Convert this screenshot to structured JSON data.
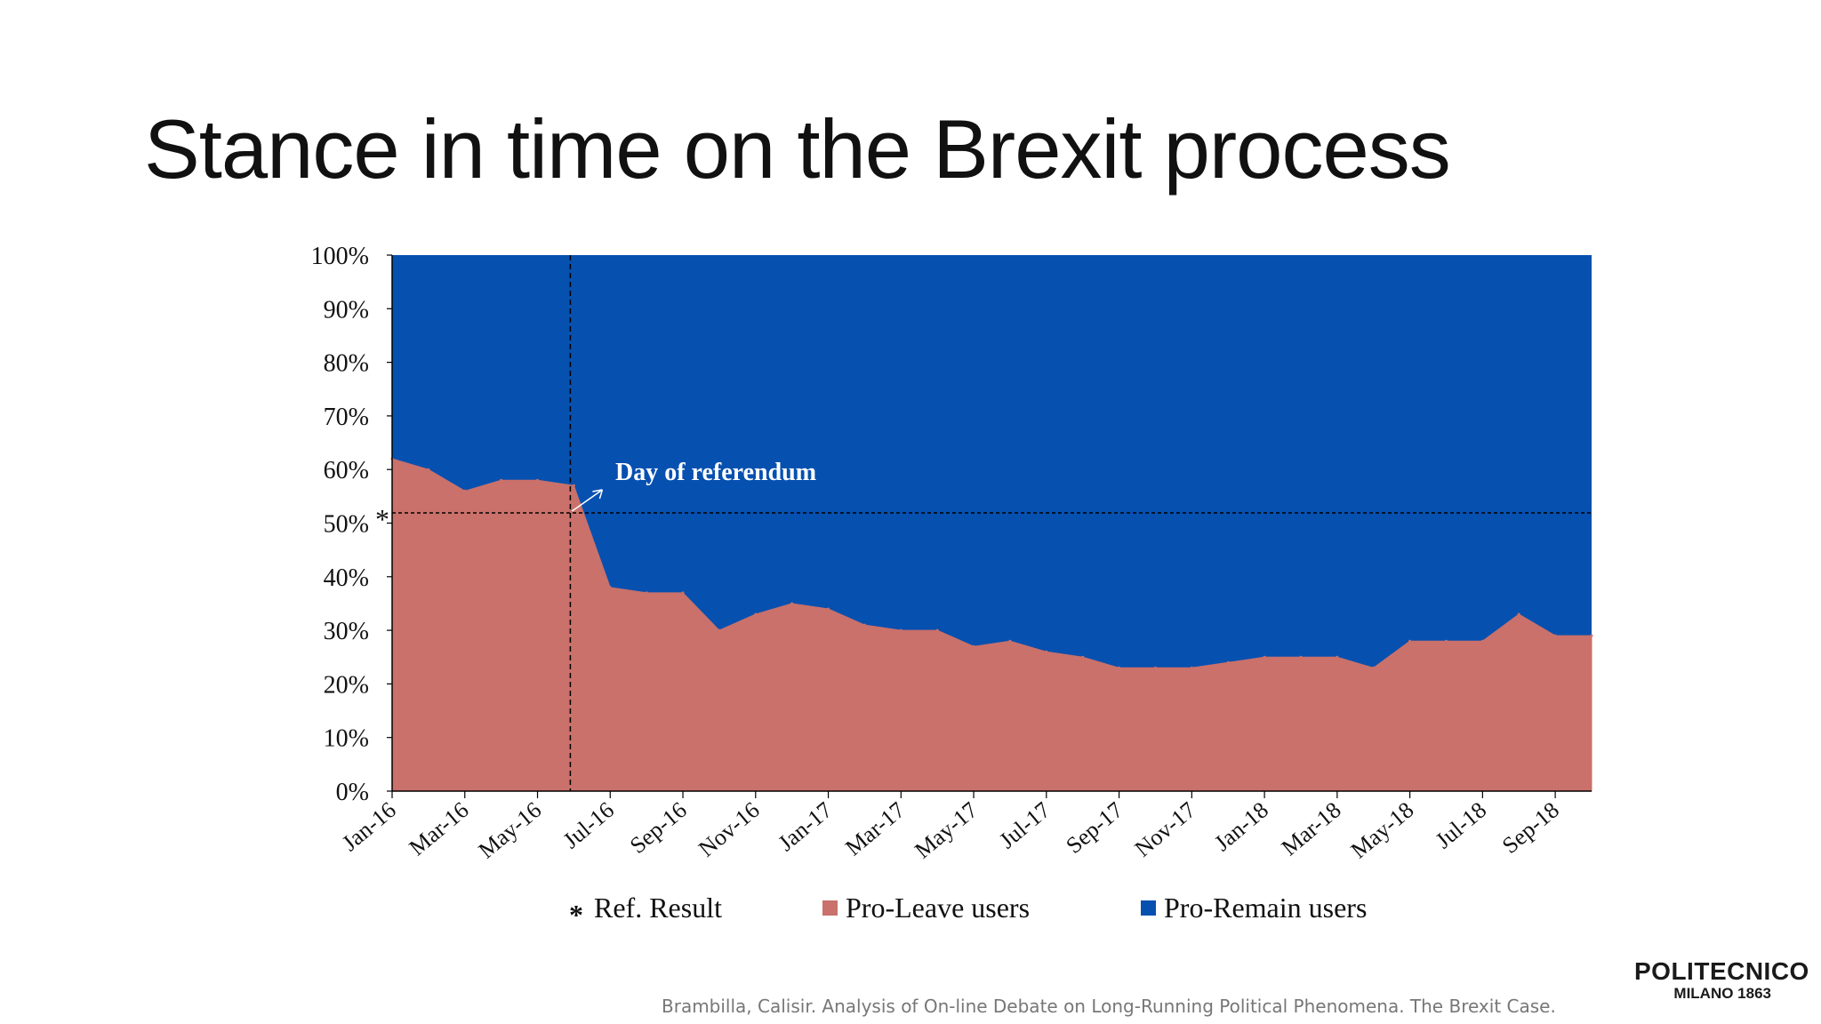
{
  "slide": {
    "title": "Stance in time on the Brexit process",
    "citation": "Brambilla, Calisir. Analysis of On-line Debate  on Long-Running Political Phenomena. The Brexit Case.",
    "logo": {
      "line1": "POLITECNICO",
      "line2": "MILANO 1863"
    }
  },
  "chart_data": {
    "type": "area",
    "stacked": true,
    "normalized": true,
    "title": "",
    "xlabel": "",
    "ylabel": "",
    "ylim": [
      0,
      100
    ],
    "y_tick_labels": [
      "0%",
      "10%",
      "20%",
      "30%",
      "40%",
      "50%",
      "60%",
      "70%",
      "80%",
      "90%",
      "100%"
    ],
    "x_tick_labels": [
      "Jan-16",
      "Mar-16",
      "May-16",
      "Jul-16",
      "Sep-16",
      "Nov-16",
      "Jan-17",
      "Mar-17",
      "May-17",
      "Jul-17",
      "Sep-17",
      "Nov-17",
      "Jan-18",
      "Mar-18",
      "May-18",
      "Jul-18",
      "Sep-18"
    ],
    "x_range": [
      "Jan-16",
      "Oct-18"
    ],
    "grid": false,
    "legend_position": "bottom",
    "colors": {
      "leave": "#c9716a",
      "remain": "#0650b0"
    },
    "series": [
      {
        "name": "Pro-Leave users",
        "color": "#c9716a",
        "x": [
          "Jan-16",
          "Feb-16",
          "Mar-16",
          "Apr-16",
          "May-16",
          "Jun-16",
          "Jul-16",
          "Aug-16",
          "Sep-16",
          "Oct-16",
          "Nov-16",
          "Dec-16",
          "Jan-17",
          "Feb-17",
          "Mar-17",
          "Apr-17",
          "May-17",
          "Jun-17",
          "Jul-17",
          "Aug-17",
          "Sep-17",
          "Oct-17",
          "Nov-17",
          "Dec-17",
          "Jan-18",
          "Feb-18",
          "Mar-18",
          "Apr-18",
          "May-18",
          "Jun-18",
          "Jul-18",
          "Aug-18",
          "Sep-18",
          "Oct-18"
        ],
        "values": [
          62,
          60,
          56,
          58,
          58,
          57,
          38,
          37,
          37,
          30,
          33,
          35,
          34,
          31,
          30,
          30,
          27,
          28,
          26,
          25,
          23,
          23,
          23,
          24,
          25,
          25,
          25,
          23,
          28,
          28,
          28,
          33,
          29,
          29
        ]
      },
      {
        "name": "Pro-Remain users",
        "color": "#0650b0",
        "x": [
          "Jan-16",
          "Feb-16",
          "Mar-16",
          "Apr-16",
          "May-16",
          "Jun-16",
          "Jul-16",
          "Aug-16",
          "Sep-16",
          "Oct-16",
          "Nov-16",
          "Dec-16",
          "Jan-17",
          "Feb-17",
          "Mar-17",
          "Apr-17",
          "May-17",
          "Jun-17",
          "Jul-17",
          "Aug-17",
          "Sep-17",
          "Oct-17",
          "Nov-17",
          "Dec-17",
          "Jan-18",
          "Feb-18",
          "Mar-18",
          "Apr-18",
          "May-18",
          "Jun-18",
          "Jul-18",
          "Aug-18",
          "Sep-18",
          "Oct-18"
        ],
        "values": [
          38,
          40,
          44,
          42,
          42,
          43,
          62,
          63,
          63,
          70,
          67,
          65,
          66,
          69,
          70,
          70,
          73,
          72,
          74,
          75,
          77,
          77,
          77,
          76,
          75,
          75,
          75,
          77,
          72,
          72,
          72,
          67,
          71,
          71
        ]
      }
    ],
    "reference_line": {
      "label": "Ref. Result",
      "marker": "*",
      "value": 51.9
    },
    "annotation": {
      "text": "Day of referendum",
      "x": "Jun-16"
    },
    "legend": [
      {
        "marker": "*",
        "label": "Ref. Result"
      },
      {
        "marker": "square",
        "color": "#c9716a",
        "label": "Pro-Leave users"
      },
      {
        "marker": "square",
        "color": "#0650b0",
        "label": "Pro-Remain users"
      }
    ]
  }
}
